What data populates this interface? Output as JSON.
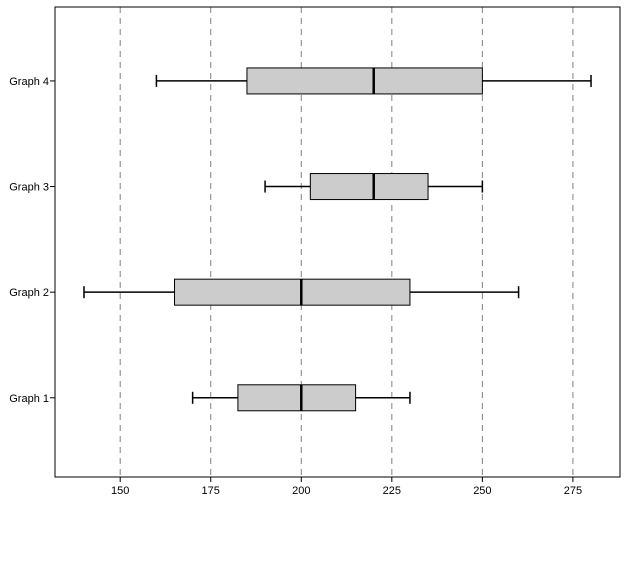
{
  "chart_data": {
    "type": "boxplot",
    "orientation": "horizontal",
    "title": "",
    "xlabel": "",
    "ylabel": "",
    "xlim": [
      132,
      288
    ],
    "x_ticks": [
      150,
      175,
      200,
      225,
      250,
      275
    ],
    "x_tick_labels": [
      "150",
      "175",
      "200",
      "225",
      "250",
      "275"
    ],
    "categories": [
      "Graph 1",
      "Graph 2",
      "Graph 3",
      "Graph 4"
    ],
    "boxes": [
      {
        "label": "Graph 1",
        "min": 170,
        "q1": 182.5,
        "median": 200,
        "q3": 215,
        "max": 230
      },
      {
        "label": "Graph 2",
        "min": 140,
        "q1": 165,
        "median": 200,
        "q3": 230,
        "max": 260
      },
      {
        "label": "Graph 3",
        "min": 190,
        "q1": 202.5,
        "median": 220,
        "q3": 235,
        "max": 250
      },
      {
        "label": "Graph 4",
        "min": 160,
        "q1": 185,
        "median": 220,
        "q3": 250,
        "max": 280
      }
    ],
    "grid": {
      "vertical": true,
      "style": "dashed"
    },
    "colors": {
      "box_fill": "#cccccc",
      "stroke": "#000000",
      "grid": "#808080",
      "background": "#ffffff"
    }
  }
}
